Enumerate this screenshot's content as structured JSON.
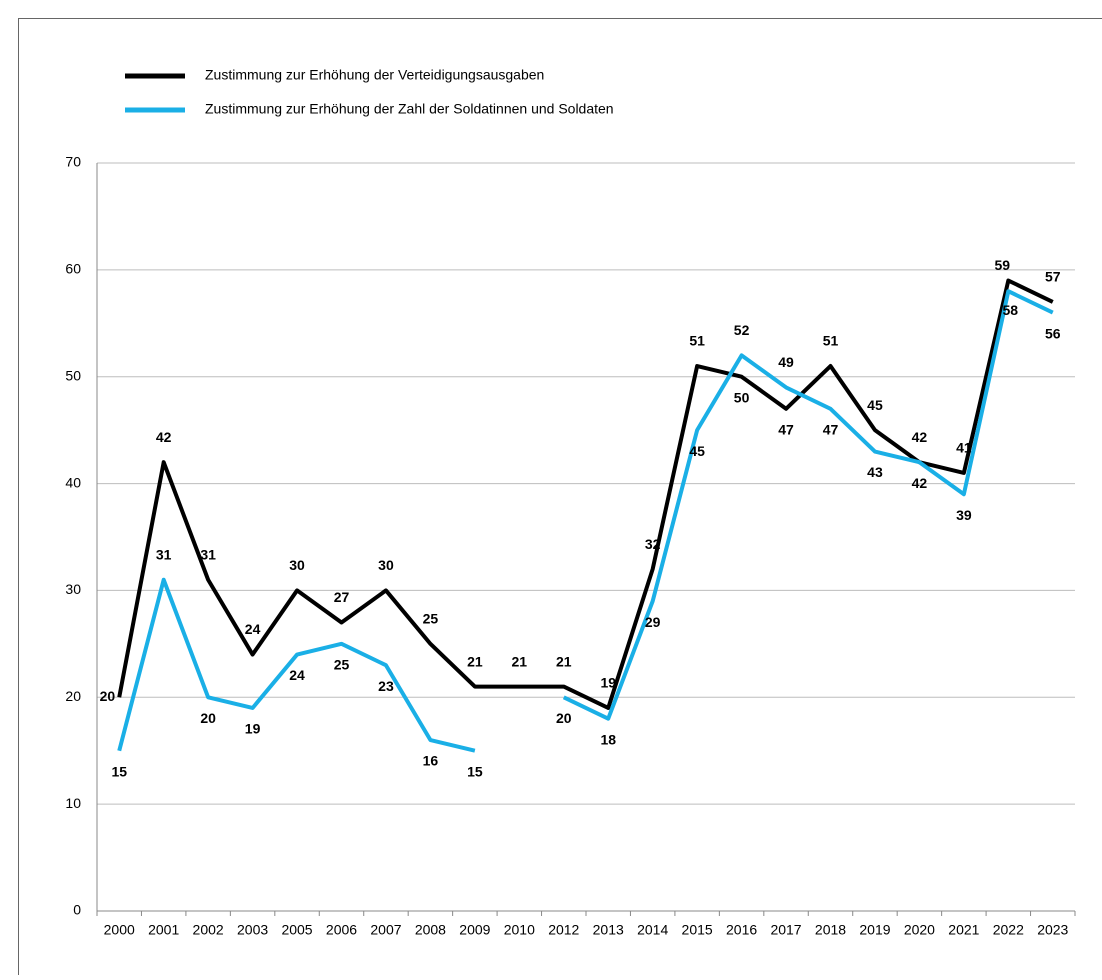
{
  "chart_data": {
    "type": "line",
    "categories": [
      "2000",
      "2001",
      "2002",
      "2003",
      "2005",
      "2006",
      "2007",
      "2008",
      "2009",
      "2010",
      "2012",
      "2013",
      "2014",
      "2015",
      "2016",
      "2017",
      "2018",
      "2019",
      "2020",
      "2021",
      "2022",
      "2023"
    ],
    "series": [
      {
        "name": "Zustimmung zur Erhöhung der Verteidigungsausgaben",
        "color": "#000000",
        "values": [
          20,
          42,
          31,
          24,
          30,
          27,
          30,
          25,
          21,
          21,
          21,
          19,
          32,
          51,
          50,
          47,
          51,
          45,
          42,
          41,
          59,
          57
        ]
      },
      {
        "name": "Zustimmung zur Erhöhung der Zahl der Soldatinnen und Soldaten",
        "color": "#1aafe6",
        "values": [
          15,
          31,
          20,
          19,
          24,
          25,
          23,
          16,
          15,
          null,
          20,
          18,
          29,
          45,
          52,
          49,
          47,
          43,
          42,
          39,
          58,
          56
        ]
      }
    ],
    "ylim": [
      0,
      70
    ],
    "yticks": [
      0,
      10,
      20,
      30,
      40,
      50,
      60,
      70
    ],
    "grid": true
  }
}
